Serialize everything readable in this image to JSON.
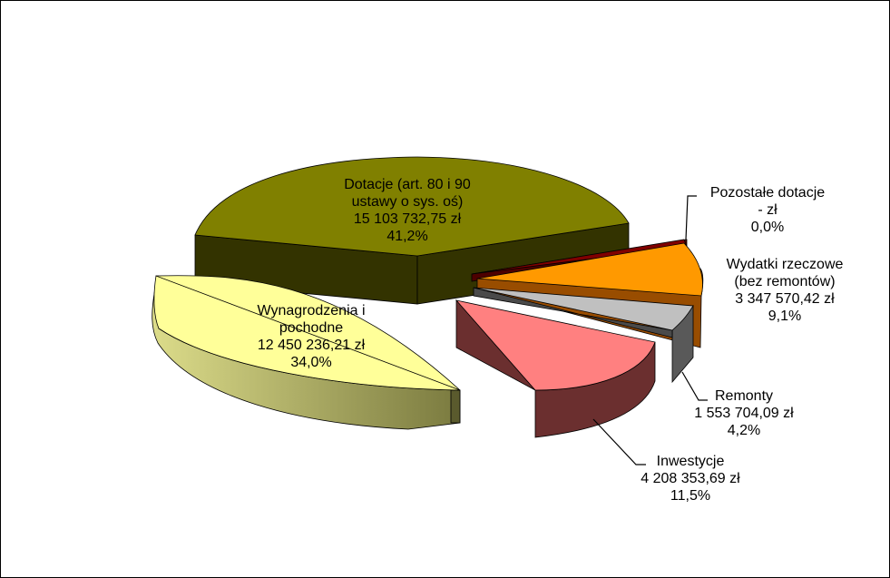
{
  "chart_data": {
    "type": "pie",
    "title": "",
    "legend": "none",
    "slices": [
      {
        "lines": [
          "Dotacje (art. 80 i 90",
          "ustawy o sys. oś)"
        ],
        "value": "15 103 732,75 zł",
        "percent": "41,2%",
        "fraction": 0.412,
        "top_color": "#808000",
        "side_color": "#333300",
        "exploded": false
      },
      {
        "lines": [
          "Pozostałe dotacje"
        ],
        "value": "-   zł",
        "percent": "0,0%",
        "fraction": 0.004,
        "top_color": "#800000",
        "side_color": "#4d0000",
        "exploded": true
      },
      {
        "lines": [
          "Wydatki rzeczowe",
          "(bez remontów)"
        ],
        "value": "3 347 570,42 zł",
        "percent": "9,1%",
        "fraction": 0.091,
        "top_color": "#ff9900",
        "side_color": "#994d00",
        "exploded": true
      },
      {
        "lines": [
          "Remonty"
        ],
        "value": "1 553 704,09 zł",
        "percent": "4,2%",
        "fraction": 0.042,
        "top_color": "#c0c0c0",
        "side_color": "#595959",
        "exploded": true
      },
      {
        "lines": [
          "Inwestycje"
        ],
        "value": "4 208 353,69 zł",
        "percent": "11,5%",
        "fraction": 0.115,
        "top_color": "#ff8080",
        "side_color": "#6b2f2f",
        "exploded": true
      },
      {
        "lines": [
          "Wynagrodzenia i",
          "pochodne"
        ],
        "value": "12 450 236,21 zł",
        "percent": "34,0%",
        "fraction": 0.34,
        "top_color": "#ffff99",
        "side_color": "#b5b573",
        "exploded": false
      }
    ]
  }
}
